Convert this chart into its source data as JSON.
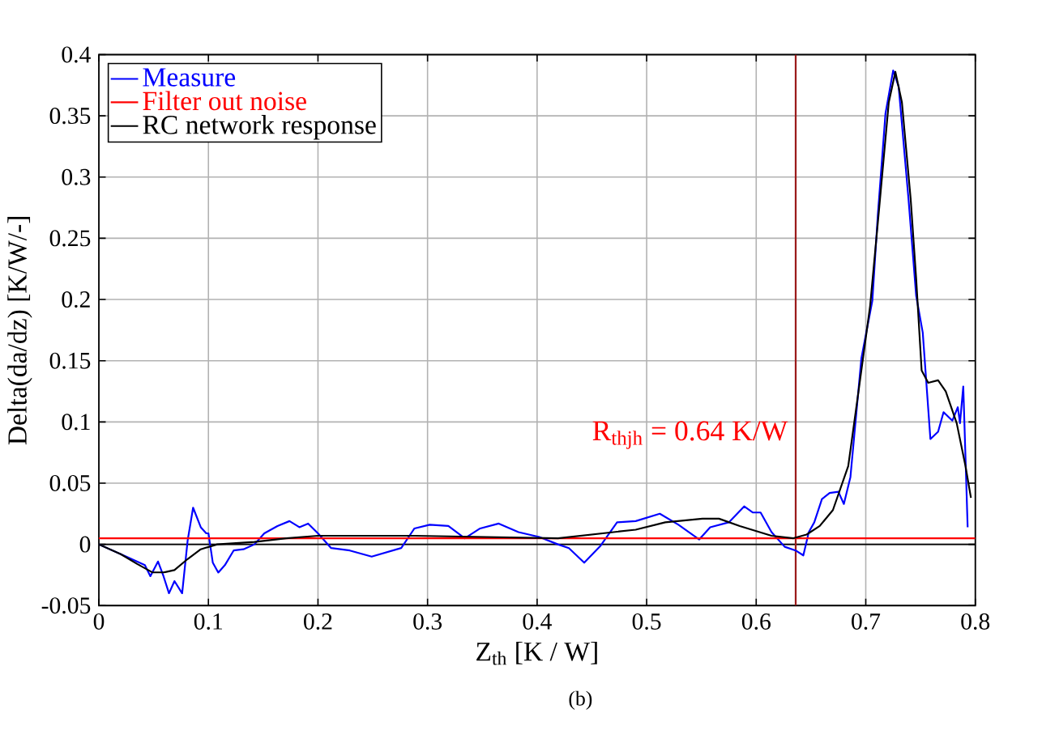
{
  "chart_data": {
    "type": "line",
    "xlabel": "Z$_{th}$ [K / W]",
    "ylabel": "Delta(da/dz) [K/W/-]",
    "xlim": [
      0,
      0.8
    ],
    "ylim": [
      -0.05,
      0.4
    ],
    "xticks": [
      0,
      0.1,
      0.2,
      0.3,
      0.4,
      0.5,
      0.6,
      0.7,
      0.8
    ],
    "yticks": [
      -0.05,
      0,
      0.05,
      0.1,
      0.15,
      0.2,
      0.25,
      0.3,
      0.35,
      0.4
    ],
    "grid": true,
    "legend": "top left",
    "line_style": "solid",
    "marker": "none",
    "series": [
      {
        "name": "Measure",
        "color": "#0000ff",
        "x": [
          0,
          0.025,
          0.042,
          0.047,
          0.054,
          0.059,
          0.064,
          0.069,
          0.076,
          0.081,
          0.086,
          0.093,
          0.098,
          0.1,
          0.104,
          0.109,
          0.115,
          0.123,
          0.132,
          0.142,
          0.151,
          0.163,
          0.174,
          0.183,
          0.191,
          0.2,
          0.212,
          0.229,
          0.249,
          0.276,
          0.288,
          0.302,
          0.319,
          0.334,
          0.348,
          0.365,
          0.383,
          0.402,
          0.419,
          0.429,
          0.443,
          0.458,
          0.473,
          0.49,
          0.512,
          0.529,
          0.548,
          0.558,
          0.575,
          0.589,
          0.597,
          0.604,
          0.614,
          0.626,
          0.636,
          0.643,
          0.648,
          0.653,
          0.66,
          0.667,
          0.675,
          0.68,
          0.686,
          0.696,
          0.706,
          0.711,
          0.718,
          0.725,
          0.73,
          0.739,
          0.746,
          0.752,
          0.759,
          0.766,
          0.771,
          0.779,
          0.784,
          0.786,
          0.789,
          0.793
        ],
        "values": [
          0,
          -0.01,
          -0.017,
          -0.026,
          -0.014,
          -0.026,
          -0.04,
          -0.03,
          -0.04,
          0.003,
          0.03,
          0.014,
          0.009,
          0.009,
          -0.015,
          -0.023,
          -0.017,
          -0.005,
          -0.004,
          0,
          0.009,
          0.015,
          0.019,
          0.014,
          0.017,
          0.009,
          -0.003,
          -0.005,
          -0.01,
          -0.003,
          0.013,
          0.016,
          0.015,
          0.005,
          0.013,
          0.017,
          0.01,
          0.006,
          0,
          -0.003,
          -0.015,
          -0.001,
          0.018,
          0.019,
          0.025,
          0.016,
          0.004,
          0.014,
          0.018,
          0.031,
          0.026,
          0.026,
          0.01,
          -0.002,
          -0.005,
          -0.009,
          0.01,
          0.018,
          0.037,
          0.042,
          0.043,
          0.033,
          0.055,
          0.152,
          0.199,
          0.269,
          0.352,
          0.387,
          0.374,
          0.282,
          0.203,
          0.173,
          0.086,
          0.092,
          0.108,
          0.101,
          0.112,
          0.099,
          0.129,
          0.014
        ]
      },
      {
        "name": "Filter out noise",
        "color": "#ff0000",
        "x": [
          0,
          0.8
        ],
        "values": [
          0.005,
          0.005
        ]
      },
      {
        "name": "RC network response",
        "color": "#000000",
        "x": [
          0,
          0.02,
          0.035,
          0.049,
          0.059,
          0.069,
          0.081,
          0.093,
          0.108,
          0.142,
          0.171,
          0.2,
          0.288,
          0.419,
          0.49,
          0.517,
          0.551,
          0.566,
          0.585,
          0.614,
          0.634,
          0.646,
          0.658,
          0.67,
          0.684,
          0.694,
          0.704,
          0.713,
          0.721,
          0.727,
          0.733,
          0.741,
          0.746,
          0.751,
          0.757,
          0.766,
          0.773,
          0.783,
          0.791,
          0.796
        ],
        "values": [
          0,
          -0.008,
          -0.016,
          -0.023,
          -0.023,
          -0.021,
          -0.012,
          -0.004,
          0,
          0.002,
          0.005,
          0.007,
          0.007,
          0.005,
          0.012,
          0.018,
          0.021,
          0.021,
          0.015,
          0.007,
          0.005,
          0.008,
          0.015,
          0.028,
          0.064,
          0.129,
          0.195,
          0.282,
          0.361,
          0.386,
          0.361,
          0.282,
          0.217,
          0.142,
          0.132,
          0.134,
          0.125,
          0.099,
          0.064,
          0.038
        ]
      }
    ],
    "ref_lines": [
      {
        "axis": "x",
        "value": 0.636,
        "label": "R$_{thjh}$ = 0.64 K/W",
        "color": "#9b1c1c"
      }
    ],
    "annotations": [
      "(b)"
    ]
  }
}
